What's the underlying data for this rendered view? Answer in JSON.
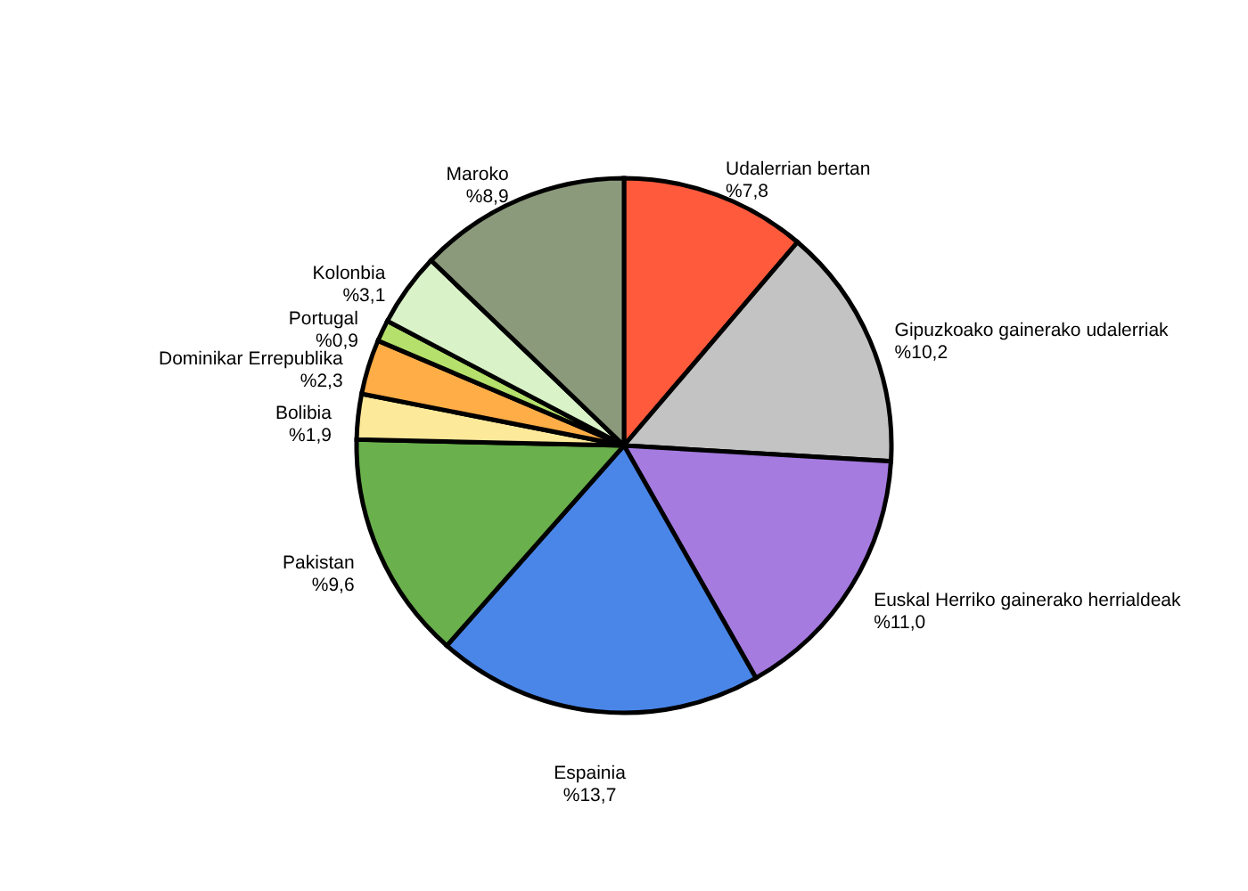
{
  "chart_data": {
    "type": "pie",
    "categories": [
      "Udalerrian bertan",
      "Gipuzkoako gainerako udalerriak",
      "Euskal Herriko gainerako herrialdeak",
      "Espainia",
      "Pakistan",
      "Bolibia",
      "Dominikar Errepublika",
      "Portugal",
      "Kolonbia",
      "Maroko"
    ],
    "values": [
      7.8,
      10.2,
      11.0,
      13.7,
      9.6,
      1.9,
      2.3,
      0.9,
      3.1,
      8.9
    ],
    "value_labels": [
      "%7,8",
      "%10,2",
      "%11,0",
      "%13,7",
      "%9,6",
      "%1,9",
      "%2,3",
      "%0,9",
      "%3,1",
      "%8,9"
    ],
    "colors": [
      "#ff5a3c",
      "#c3c3c3",
      "#a57be0",
      "#4a86e8",
      "#6ab04c",
      "#fde99a",
      "#ffad47",
      "#b5e06b",
      "#d9f2c8",
      "#8c9a7c"
    ],
    "legend": false
  }
}
